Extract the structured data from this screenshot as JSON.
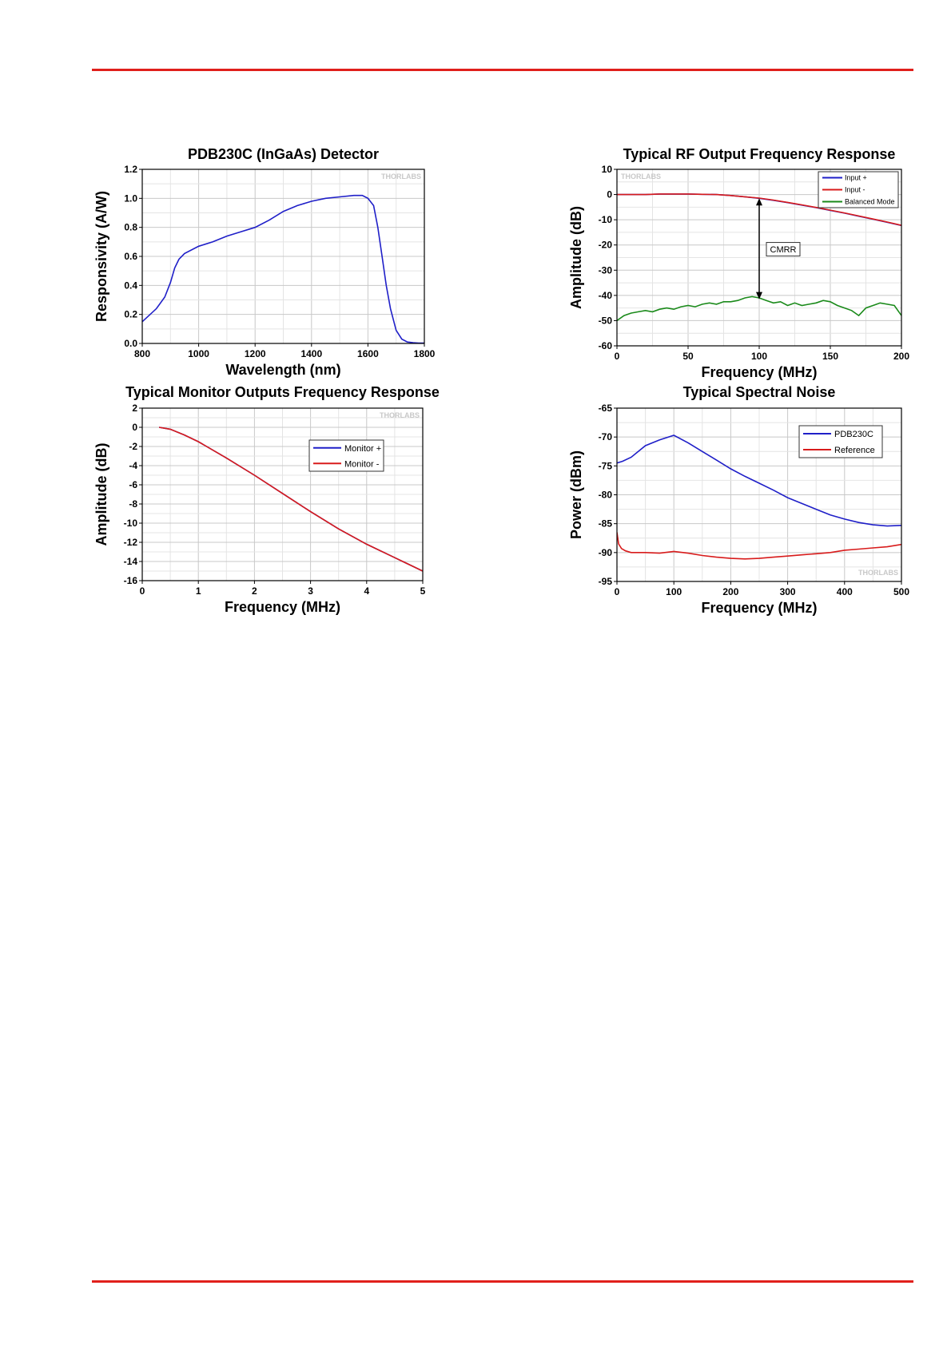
{
  "chart_data": [
    {
      "id": "c1",
      "type": "line",
      "title": "PDB230C (InGaAs) Detector",
      "xlabel": "Wavelength (nm)",
      "ylabel": "Responsivity (A/W)",
      "xlim": [
        800,
        1800
      ],
      "ylim": [
        0.0,
        1.2
      ],
      "xticks": [
        "800",
        "1000",
        "1200",
        "1400",
        "1600",
        "1800"
      ],
      "yticks": [
        "0.0",
        "0.2",
        "0.4",
        "0.6",
        "0.8",
        "1.0",
        "1.2"
      ],
      "watermark": "THORLABS",
      "grid": true,
      "legend": null,
      "series": [
        {
          "color": "#1f1fc8",
          "x": [
            800,
            850,
            880,
            900,
            915,
            930,
            950,
            1000,
            1050,
            1100,
            1150,
            1200,
            1250,
            1300,
            1350,
            1400,
            1450,
            1500,
            1550,
            1580,
            1600,
            1620,
            1635,
            1650,
            1665,
            1680,
            1700,
            1720,
            1740,
            1760,
            1780,
            1800
          ],
          "y": [
            0.15,
            0.24,
            0.32,
            0.42,
            0.52,
            0.58,
            0.62,
            0.67,
            0.7,
            0.74,
            0.77,
            0.8,
            0.85,
            0.91,
            0.95,
            0.98,
            1.0,
            1.01,
            1.02,
            1.02,
            1.0,
            0.95,
            0.8,
            0.6,
            0.4,
            0.24,
            0.09,
            0.03,
            0.01,
            0.005,
            0.003,
            0.003
          ]
        }
      ]
    },
    {
      "id": "c2",
      "type": "line",
      "title": "Typical RF Output Frequency Response",
      "xlabel": "Frequency (MHz)",
      "ylabel": "Amplitude (dB)",
      "xlim": [
        0,
        200
      ],
      "ylim": [
        -60,
        10
      ],
      "xticks": [
        "0",
        "50",
        "100",
        "150",
        "200"
      ],
      "yticks": [
        "10",
        "0",
        "-10",
        "-20",
        "-30",
        "-40",
        "-50",
        "-60"
      ],
      "watermark": "THORLABS",
      "grid": true,
      "legend": "top-right",
      "annotation": {
        "text": "CMRR",
        "arrow_x": 100,
        "arrow_y": [
          -1.5,
          -41.5
        ]
      },
      "series": [
        {
          "name": "Input +",
          "color": "#1f1fc8",
          "x": [
            0,
            10,
            20,
            30,
            40,
            50,
            60,
            70,
            80,
            90,
            100,
            110,
            120,
            130,
            140,
            150,
            160,
            170,
            180,
            190,
            200
          ],
          "y": [
            0,
            0,
            0,
            0.2,
            0.2,
            0.2,
            0.1,
            0,
            -0.4,
            -0.9,
            -1.5,
            -2.3,
            -3.2,
            -4.2,
            -5.2,
            -6.3,
            -7.4,
            -8.6,
            -9.8,
            -11,
            -12.3
          ]
        },
        {
          "name": "Input -",
          "color": "#d81b1b",
          "x": [
            0,
            10,
            20,
            30,
            40,
            50,
            60,
            70,
            80,
            90,
            100,
            110,
            120,
            130,
            140,
            150,
            160,
            170,
            180,
            190,
            200
          ],
          "y": [
            0,
            0,
            0,
            0.2,
            0.2,
            0.2,
            0.1,
            0,
            -0.4,
            -0.9,
            -1.4,
            -2.2,
            -3.1,
            -4.1,
            -5.1,
            -6.2,
            -7.3,
            -8.5,
            -9.7,
            -10.9,
            -12.2
          ]
        },
        {
          "name": "Balanced Mode",
          "color": "#1a8a1a",
          "x": [
            0,
            5,
            10,
            15,
            20,
            25,
            30,
            35,
            40,
            45,
            50,
            55,
            60,
            65,
            70,
            75,
            80,
            85,
            90,
            95,
            100,
            105,
            110,
            115,
            120,
            125,
            130,
            135,
            140,
            145,
            150,
            155,
            160,
            165,
            170,
            175,
            180,
            185,
            190,
            195,
            200
          ],
          "y": [
            -50,
            -48,
            -47,
            -46.5,
            -46,
            -46.5,
            -45.5,
            -45,
            -45.5,
            -44.5,
            -44,
            -44.5,
            -43.5,
            -43,
            -43.5,
            -42.5,
            -42.5,
            -42,
            -41,
            -40.5,
            -41,
            -42,
            -43,
            -42.5,
            -44,
            -43,
            -44,
            -43.5,
            -43,
            -42,
            -42.5,
            -44,
            -45,
            -46,
            -48,
            -45,
            -44,
            -43,
            -43.5,
            -44,
            -48
          ]
        }
      ]
    },
    {
      "id": "c3",
      "type": "line",
      "title": "Typical Monitor Outputs Frequency Response",
      "xlabel": "Frequency (MHz)",
      "ylabel": "Amplitude (dB)",
      "xlim": [
        0,
        5
      ],
      "ylim": [
        -16,
        2
      ],
      "xticks": [
        "0",
        "1",
        "2",
        "3",
        "4",
        "5"
      ],
      "yticks": [
        "2",
        "0",
        "-2",
        "-4",
        "-6",
        "-8",
        "-10",
        "-12",
        "-14",
        "-16"
      ],
      "watermark": "THORLABS",
      "grid": true,
      "legend": "top-right",
      "series": [
        {
          "name": "Monitor +",
          "color": "#1f1fc8",
          "x": [
            0.3,
            0.5,
            0.75,
            1,
            1.5,
            2,
            2.5,
            3,
            3.5,
            4,
            4.5,
            5
          ],
          "y": [
            0,
            -0.2,
            -0.8,
            -1.5,
            -3.2,
            -5,
            -6.9,
            -8.8,
            -10.6,
            -12.2,
            -13.6,
            -15
          ]
        },
        {
          "name": "Monitor -",
          "color": "#d81b1b",
          "x": [
            0.3,
            0.5,
            0.75,
            1,
            1.5,
            2,
            2.5,
            3,
            3.5,
            4,
            4.5,
            5
          ],
          "y": [
            0,
            -0.2,
            -0.8,
            -1.5,
            -3.2,
            -5,
            -6.9,
            -8.8,
            -10.6,
            -12.2,
            -13.6,
            -15
          ]
        }
      ]
    },
    {
      "id": "c4",
      "type": "line",
      "title": "Typical Spectral Noise",
      "xlabel": "Frequency (MHz)",
      "ylabel": "Power (dBm)",
      "xlim": [
        0,
        500
      ],
      "ylim": [
        -95,
        -65
      ],
      "xticks": [
        "0",
        "100",
        "200",
        "300",
        "400",
        "500"
      ],
      "yticks": [
        "-65",
        "-70",
        "-75",
        "-80",
        "-85",
        "-90",
        "-95"
      ],
      "watermark": "THORLABS",
      "grid": true,
      "legend": "top-right",
      "series": [
        {
          "name": "PDB230C",
          "color": "#1f1fc8",
          "x": [
            0,
            10,
            25,
            50,
            75,
            100,
            125,
            150,
            175,
            200,
            225,
            250,
            275,
            300,
            325,
            350,
            375,
            400,
            425,
            450,
            475,
            500
          ],
          "y": [
            -74.5,
            -74.2,
            -73.5,
            -71.5,
            -70.5,
            -69.7,
            -71,
            -72.5,
            -74,
            -75.5,
            -76.8,
            -78,
            -79.2,
            -80.5,
            -81.5,
            -82.5,
            -83.5,
            -84.2,
            -84.8,
            -85.2,
            -85.4,
            -85.3
          ]
        },
        {
          "name": "Reference",
          "color": "#d81b1b",
          "x": [
            0,
            3,
            8,
            15,
            25,
            50,
            75,
            100,
            125,
            150,
            175,
            200,
            225,
            250,
            275,
            300,
            325,
            350,
            375,
            400,
            425,
            450,
            475,
            500
          ],
          "y": [
            -86.5,
            -88.5,
            -89.3,
            -89.7,
            -90,
            -90,
            -90.1,
            -89.8,
            -90.1,
            -90.5,
            -90.8,
            -91,
            -91.1,
            -91,
            -90.8,
            -90.6,
            -90.4,
            -90.2,
            -90,
            -89.6,
            -89.4,
            -89.2,
            -89,
            -88.6
          ]
        }
      ]
    }
  ]
}
